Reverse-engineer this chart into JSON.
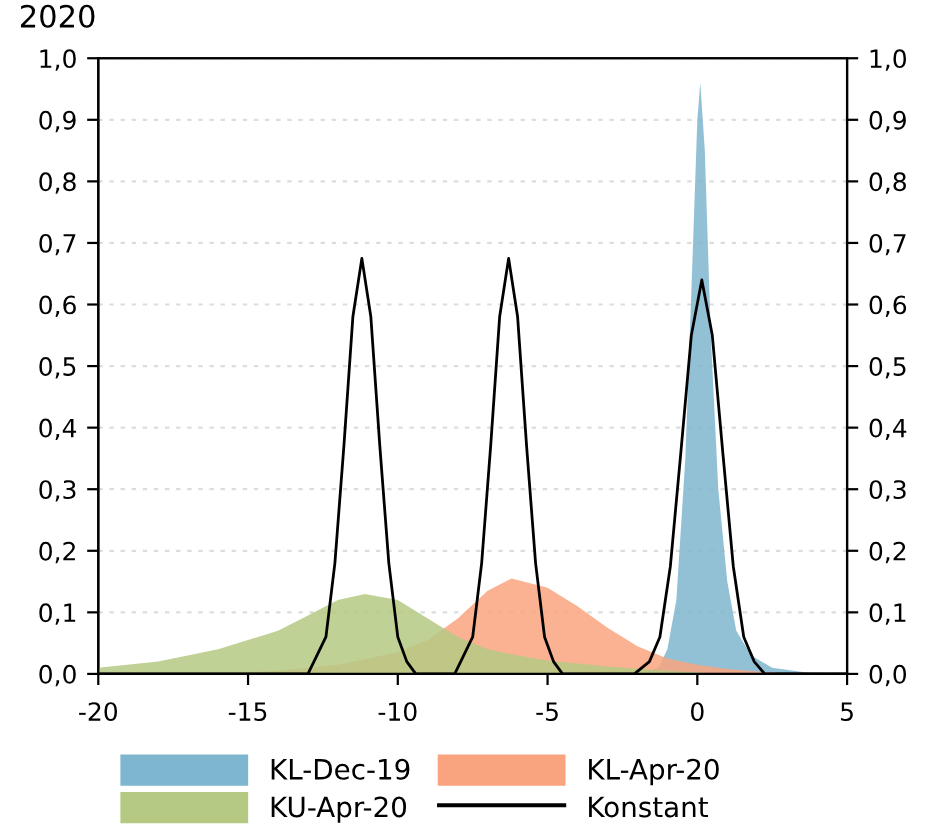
{
  "chart_data": {
    "type": "area",
    "title": "2020",
    "series": [
      {
        "name": "KL-Dec-19",
        "color": "#7fb6cf",
        "x": [
          -2,
          -1.3,
          -1,
          -0.7,
          -0.4,
          -0.2,
          0,
          0.1,
          0.25,
          0.45,
          0.7,
          1,
          1.3,
          1.8,
          2.5,
          4
        ],
        "values": [
          0,
          0.01,
          0.04,
          0.12,
          0.35,
          0.62,
          0.9,
          0.96,
          0.85,
          0.55,
          0.3,
          0.15,
          0.07,
          0.03,
          0.01,
          0
        ]
      },
      {
        "name": "KL-Apr-20",
        "color": "#f9a47f",
        "x": [
          -16,
          -14,
          -12,
          -10,
          -9,
          -8,
          -7,
          -6.2,
          -5,
          -4,
          -3,
          -2,
          -1,
          0,
          1,
          2,
          3.5
        ],
        "values": [
          0,
          0.005,
          0.015,
          0.035,
          0.055,
          0.09,
          0.135,
          0.155,
          0.14,
          0.11,
          0.075,
          0.045,
          0.025,
          0.015,
          0.008,
          0.004,
          0
        ]
      },
      {
        "name": "KU-Apr-20",
        "color": "#b5c983",
        "x": [
          -20,
          -18,
          -16,
          -14,
          -13,
          -12,
          -11.1,
          -10,
          -9,
          -8,
          -7,
          -6,
          -5,
          -3,
          -1,
          1
        ],
        "values": [
          0.01,
          0.02,
          0.04,
          0.07,
          0.095,
          0.12,
          0.13,
          0.12,
          0.09,
          0.06,
          0.04,
          0.03,
          0.022,
          0.012,
          0.005,
          0
        ]
      },
      {
        "name": "Konstant",
        "type": "line",
        "color": "#000000",
        "x": [
          -20,
          -13,
          -12.8,
          -12.4,
          -12.1,
          -11.8,
          -11.5,
          -11.2,
          -10.9,
          -10.6,
          -10.3,
          -10,
          -9.7,
          -9.4,
          -8.1,
          -7.9,
          -7.5,
          -7.2,
          -6.9,
          -6.6,
          -6.3,
          -6,
          -5.7,
          -5.4,
          -5.1,
          -4.8,
          -4.5,
          -2.1,
          -1.6,
          -1.25,
          -0.9,
          -0.55,
          -0.2,
          0.15,
          0.5,
          0.85,
          1.2,
          1.55,
          1.9,
          2.25,
          5
        ],
        "values": [
          0,
          0,
          0.02,
          0.06,
          0.18,
          0.37,
          0.58,
          0.675,
          0.58,
          0.37,
          0.18,
          0.06,
          0.02,
          0,
          0,
          0.02,
          0.06,
          0.18,
          0.37,
          0.58,
          0.675,
          0.58,
          0.37,
          0.18,
          0.06,
          0.02,
          0,
          0,
          0.02,
          0.06,
          0.175,
          0.36,
          0.55,
          0.64,
          0.55,
          0.36,
          0.175,
          0.06,
          0.02,
          0,
          0
        ]
      }
    ],
    "xlim": [
      -20,
      5
    ],
    "xticks": [
      -20,
      -15,
      -10,
      -5,
      0,
      5
    ],
    "ylim": [
      0,
      1
    ],
    "yticks": [
      {
        "value": 0,
        "label": "0,0"
      },
      {
        "value": 0.1,
        "label": "0,1"
      },
      {
        "value": 0.2,
        "label": "0,2"
      },
      {
        "value": 0.3,
        "label": "0,3"
      },
      {
        "value": 0.4,
        "label": "0,4"
      },
      {
        "value": 0.5,
        "label": "0,5"
      },
      {
        "value": 0.6,
        "label": "0,6"
      },
      {
        "value": 0.7,
        "label": "0,7"
      },
      {
        "value": 0.8,
        "label": "0,8"
      },
      {
        "value": 0.9,
        "label": "0,9"
      },
      {
        "value": 1,
        "label": "1,0"
      }
    ],
    "y2lim": [
      0,
      1
    ],
    "y2ticks": [
      {
        "value": 0,
        "label": "0,0"
      },
      {
        "value": 0.1,
        "label": "0,1"
      },
      {
        "value": 0.2,
        "label": "0,2"
      },
      {
        "value": 0.3,
        "label": "0,3"
      },
      {
        "value": 0.4,
        "label": "0,4"
      },
      {
        "value": 0.5,
        "label": "0,5"
      },
      {
        "value": 0.6,
        "label": "0,6"
      },
      {
        "value": 0.7,
        "label": "0,7"
      },
      {
        "value": 0.8,
        "label": "0,8"
      },
      {
        "value": 0.9,
        "label": "0,9"
      },
      {
        "value": 1,
        "label": "1,0"
      }
    ],
    "grid": "y",
    "legend": "bottom",
    "line_style": "solid"
  }
}
